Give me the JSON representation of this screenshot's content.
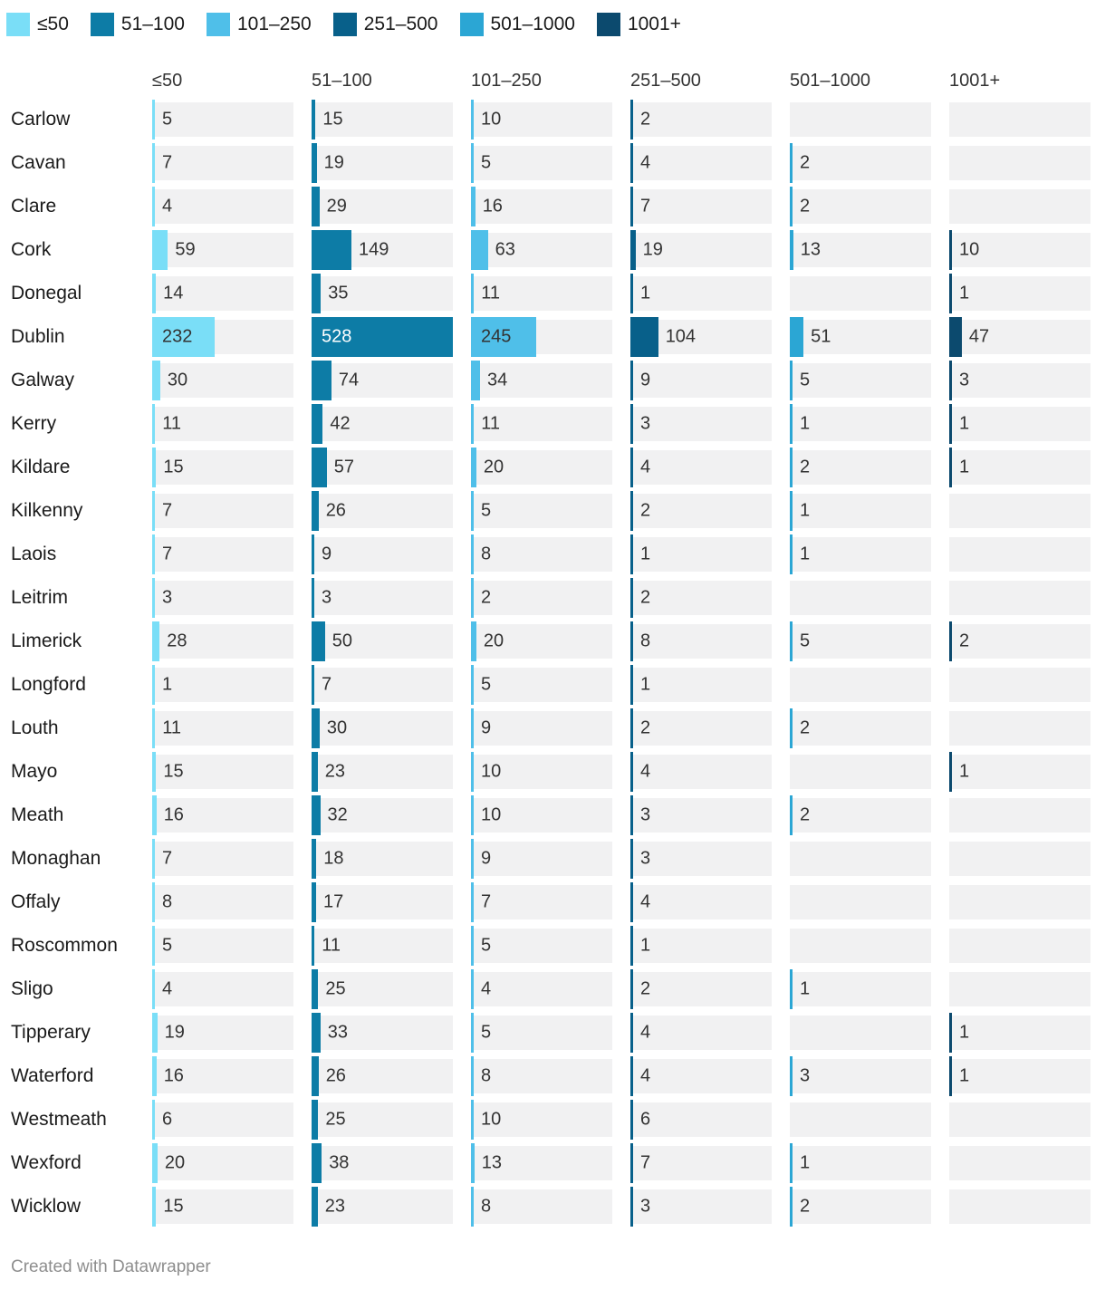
{
  "chart_data": {
    "type": "bar",
    "layout": "small-multiples-bar-table",
    "legend_position": "top-left",
    "grid": false,
    "scale_max": 528,
    "categories": [
      "Carlow",
      "Cavan",
      "Clare",
      "Cork",
      "Donegal",
      "Dublin",
      "Galway",
      "Kerry",
      "Kildare",
      "Kilkenny",
      "Laois",
      "Leitrim",
      "Limerick",
      "Longford",
      "Louth",
      "Mayo",
      "Meath",
      "Monaghan",
      "Offaly",
      "Roscommon",
      "Sligo",
      "Tipperary",
      "Waterford",
      "Westmeath",
      "Wexford",
      "Wicklow"
    ],
    "series": [
      {
        "name": "≤50",
        "color": "#7ADEF7",
        "label_color_inside": "#333333",
        "values": [
          5,
          7,
          4,
          59,
          14,
          232,
          30,
          11,
          15,
          7,
          7,
          3,
          28,
          1,
          11,
          15,
          16,
          7,
          8,
          5,
          4,
          19,
          16,
          6,
          20,
          15
        ]
      },
      {
        "name": "51–100",
        "color": "#0D7CA6",
        "label_color_inside": "#ffffff",
        "values": [
          15,
          19,
          29,
          149,
          35,
          528,
          74,
          42,
          57,
          26,
          9,
          3,
          50,
          7,
          30,
          23,
          32,
          18,
          17,
          11,
          25,
          33,
          26,
          25,
          38,
          23
        ]
      },
      {
        "name": "101–250",
        "color": "#4FBFE9",
        "label_color_inside": "#333333",
        "values": [
          10,
          5,
          16,
          63,
          11,
          245,
          34,
          11,
          20,
          5,
          8,
          2,
          20,
          5,
          9,
          10,
          10,
          9,
          7,
          5,
          4,
          5,
          8,
          10,
          13,
          8
        ]
      },
      {
        "name": "251–500",
        "color": "#08608A",
        "label_color_inside": "#ffffff",
        "values": [
          2,
          4,
          7,
          19,
          1,
          104,
          9,
          3,
          4,
          2,
          1,
          2,
          8,
          1,
          2,
          4,
          3,
          3,
          4,
          1,
          2,
          4,
          4,
          6,
          7,
          3
        ]
      },
      {
        "name": "501–1000",
        "color": "#2BA6D4",
        "label_color_inside": "#333333",
        "values": [
          null,
          2,
          2,
          13,
          null,
          51,
          5,
          1,
          2,
          1,
          1,
          null,
          5,
          null,
          2,
          null,
          2,
          null,
          null,
          null,
          1,
          null,
          3,
          null,
          1,
          2
        ]
      },
      {
        "name": "1001+",
        "color": "#0C4A6E",
        "label_color_inside": "#ffffff",
        "values": [
          null,
          null,
          null,
          10,
          1,
          47,
          3,
          1,
          1,
          null,
          null,
          null,
          2,
          null,
          null,
          1,
          null,
          null,
          null,
          null,
          null,
          1,
          1,
          null,
          null,
          null
        ]
      }
    ]
  },
  "footer": {
    "credit": "Created with Datawrapper"
  }
}
